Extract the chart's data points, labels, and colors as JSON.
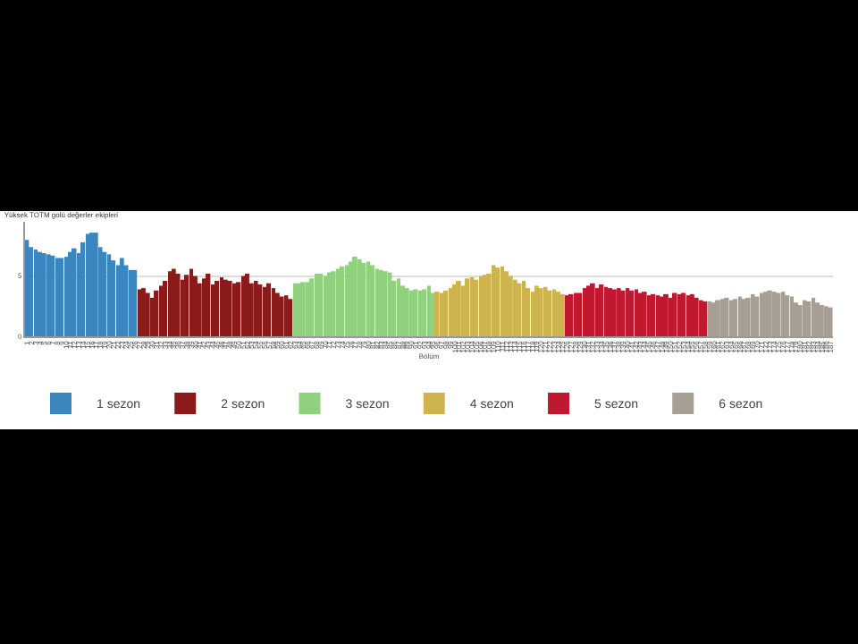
{
  "chart_data": {
    "type": "bar",
    "title": "Yüksek TOTM golü değerler ekipleri",
    "xlabel": "Bölüm",
    "categories": [
      "1",
      "2",
      "3",
      "4",
      "5",
      "6",
      "7",
      "8",
      "9",
      "10",
      "11",
      "12",
      "13",
      "14",
      "15",
      "16",
      "17",
      "18",
      "19",
      "20",
      "21",
      "22",
      "23",
      "24",
      "25",
      "26",
      "27",
      "28",
      "29",
      "30",
      "31",
      "32",
      "33",
      "34",
      "35",
      "36",
      "37",
      "38",
      "39",
      "40",
      "41",
      "42",
      "43",
      "44",
      "45",
      "46",
      "47",
      "48",
      "49",
      "50",
      "51",
      "52",
      "53",
      "54",
      "55",
      "56",
      "57",
      "58",
      "59",
      "60",
      "61",
      "62",
      "63",
      "64",
      "65",
      "66",
      "67",
      "68",
      "69",
      "70",
      "71",
      "72",
      "73",
      "74",
      "75",
      "76",
      "77",
      "78",
      "79",
      "80",
      "81",
      "82",
      "83",
      "84",
      "85",
      "86",
      "87",
      "88",
      "89",
      "90",
      "91",
      "92",
      "93",
      "94",
      "95",
      "96",
      "97",
      "98",
      "99",
      "100",
      "101",
      "102",
      "103",
      "104",
      "105",
      "106",
      "107",
      "108",
      "109",
      "110",
      "111",
      "112",
      "113",
      "114",
      "115",
      "116",
      "117",
      "118",
      "119",
      "120",
      "121",
      "122",
      "123",
      "124",
      "125",
      "126",
      "127",
      "128",
      "129",
      "130",
      "131",
      "132",
      "133",
      "134",
      "135",
      "136",
      "137",
      "138",
      "139",
      "140",
      "141",
      "142",
      "143",
      "144",
      "145",
      "146",
      "147",
      "148",
      "149",
      "150",
      "151",
      "152",
      "153",
      "154",
      "155",
      "156",
      "157",
      "158",
      "159",
      "160",
      "161",
      "162",
      "163",
      "164",
      "165",
      "166",
      "167",
      "168",
      "169",
      "170",
      "171",
      "172",
      "173",
      "174",
      "175",
      "176",
      "177",
      "178",
      "179",
      "180",
      "181",
      "182",
      "183",
      "184",
      "185",
      "186",
      "187"
    ],
    "series": [
      {
        "name": "1 sezon",
        "color": "#3a87c0",
        "x": [
          "1",
          "2",
          "3",
          "4",
          "5",
          "6",
          "7",
          "8",
          "9",
          "10",
          "11",
          "12",
          "13",
          "14",
          "15",
          "16",
          "17",
          "18",
          "19",
          "20",
          "21",
          "22",
          "23",
          "24",
          "25",
          "26"
        ],
        "values": [
          8.0,
          7.4,
          7.2,
          7.0,
          6.9,
          6.8,
          6.7,
          6.5,
          6.5,
          6.6,
          7.0,
          7.3,
          6.9,
          7.8,
          8.5,
          8.6,
          8.6,
          7.4,
          7.0,
          6.8,
          6.3,
          5.9,
          6.5,
          5.9,
          5.5,
          5.5
        ]
      },
      {
        "name": "2 sezon",
        "color": "#8b1a1a",
        "x": [
          "27",
          "28",
          "29",
          "30",
          "31",
          "32",
          "33",
          "34",
          "35",
          "36",
          "37",
          "38",
          "39",
          "40",
          "41",
          "42",
          "43",
          "44",
          "45",
          "46",
          "47",
          "48",
          "49",
          "50",
          "51",
          "52",
          "53",
          "54",
          "55",
          "56",
          "57",
          "58",
          "59",
          "60",
          "61",
          "62"
        ],
        "values": [
          3.9,
          4.0,
          3.6,
          3.2,
          3.8,
          4.2,
          4.6,
          5.4,
          5.6,
          5.2,
          4.7,
          5.1,
          5.6,
          5.0,
          4.4,
          4.8,
          5.2,
          4.3,
          4.6,
          4.9,
          4.7,
          4.6,
          4.4,
          4.5,
          5.0,
          5.2,
          4.4,
          4.6,
          4.3,
          4.1,
          4.4,
          4.0,
          3.6,
          3.3,
          3.4,
          3.1
        ]
      },
      {
        "name": "3 sezon",
        "color": "#8fd17e",
        "x": [
          "63",
          "64",
          "65",
          "66",
          "67",
          "68",
          "69",
          "70",
          "71",
          "72",
          "73",
          "74",
          "75",
          "76",
          "77",
          "78",
          "79",
          "80",
          "81",
          "82",
          "83",
          "84",
          "85",
          "86",
          "87",
          "88",
          "89",
          "90",
          "91",
          "92",
          "93",
          "94",
          "95"
        ],
        "values": [
          4.4,
          4.4,
          4.5,
          4.5,
          4.8,
          5.2,
          5.2,
          5.0,
          5.3,
          5.4,
          5.6,
          5.8,
          5.9,
          6.2,
          6.6,
          6.4,
          6.1,
          6.2,
          5.9,
          5.6,
          5.5,
          5.4,
          5.3,
          4.6,
          4.8,
          4.2,
          4.0,
          3.8,
          3.9,
          3.8,
          3.9,
          4.2,
          3.6
        ]
      },
      {
        "name": "4 sezon",
        "color": "#cdb44e",
        "x": [
          "96",
          "97",
          "98",
          "99",
          "100",
          "101",
          "102",
          "103",
          "104",
          "105",
          "106",
          "107",
          "108",
          "109",
          "110",
          "111",
          "112",
          "113",
          "114",
          "115",
          "116",
          "117",
          "118",
          "119",
          "120",
          "121",
          "122",
          "123",
          "124",
          "125"
        ],
        "values": [
          3.7,
          3.6,
          3.8,
          4.0,
          4.3,
          4.6,
          4.2,
          4.8,
          4.9,
          4.7,
          5.0,
          5.1,
          5.2,
          5.9,
          5.7,
          5.8,
          5.4,
          5.0,
          4.7,
          4.4,
          4.6,
          4.0,
          3.7,
          4.2,
          4.0,
          4.1,
          3.8,
          3.9,
          3.7,
          3.5
        ]
      },
      {
        "name": "5 sezon",
        "color": "#c0182e",
        "x": [
          "126",
          "127",
          "128",
          "129",
          "130",
          "131",
          "132",
          "133",
          "134",
          "135",
          "136",
          "137",
          "138",
          "139",
          "140",
          "141",
          "142",
          "143",
          "144",
          "145",
          "146",
          "147",
          "148",
          "149",
          "150",
          "151",
          "152",
          "153",
          "154",
          "155",
          "156",
          "157",
          "158"
        ],
        "values": [
          3.4,
          3.5,
          3.6,
          3.6,
          4.0,
          4.2,
          4.4,
          4.0,
          4.3,
          4.1,
          4.0,
          3.9,
          4.0,
          3.8,
          4.0,
          3.8,
          3.9,
          3.6,
          3.7,
          3.4,
          3.5,
          3.4,
          3.3,
          3.5,
          3.2,
          3.6,
          3.5,
          3.6,
          3.4,
          3.5,
          3.2,
          3.0,
          2.9
        ]
      },
      {
        "name": "6 sezon",
        "color": "#a89f94",
        "x": [
          "159",
          "160",
          "161",
          "162",
          "163",
          "164",
          "165",
          "166",
          "167",
          "168",
          "169",
          "170",
          "171",
          "172",
          "173",
          "174",
          "175",
          "176",
          "177",
          "178",
          "179",
          "180",
          "181",
          "182",
          "183",
          "184",
          "185",
          "186",
          "187"
        ],
        "values": [
          2.9,
          2.8,
          3.0,
          3.1,
          3.2,
          3.0,
          3.1,
          3.3,
          3.1,
          3.2,
          3.5,
          3.3,
          3.6,
          3.7,
          3.8,
          3.7,
          3.6,
          3.7,
          3.4,
          3.3,
          2.8,
          2.6,
          3.0,
          2.9,
          3.2,
          2.8,
          2.6,
          2.5,
          2.4
        ]
      }
    ],
    "ylim": [
      0,
      9.5
    ],
    "yticks": [
      0,
      5
    ],
    "grid": "y",
    "legend": "bottom left"
  }
}
